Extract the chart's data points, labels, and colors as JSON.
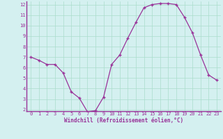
{
  "x": [
    0,
    1,
    2,
    3,
    4,
    5,
    6,
    7,
    8,
    9,
    10,
    11,
    12,
    13,
    14,
    15,
    16,
    17,
    18,
    19,
    20,
    21,
    22,
    23
  ],
  "y": [
    7.0,
    6.7,
    6.3,
    6.3,
    5.5,
    3.7,
    3.1,
    1.8,
    1.9,
    3.2,
    6.3,
    7.2,
    8.8,
    10.3,
    11.7,
    12.0,
    12.1,
    12.1,
    12.0,
    10.8,
    9.3,
    7.2,
    5.3,
    4.8
  ],
  "xlabel": "Windchill (Refroidissement éolien,°C)",
  "ylim": [
    2,
    12
  ],
  "xlim": [
    0,
    23
  ],
  "line_color": "#993399",
  "marker_color": "#993399",
  "bg_color": "#d4f0f0",
  "grid_color": "#aaddcc",
  "axis_label_color": "#993399",
  "tick_color": "#993399",
  "spine_color": "#993399",
  "yticks": [
    2,
    3,
    4,
    5,
    6,
    7,
    8,
    9,
    10,
    11,
    12
  ],
  "xticks": [
    0,
    1,
    2,
    3,
    4,
    5,
    6,
    7,
    8,
    9,
    10,
    11,
    12,
    13,
    14,
    15,
    16,
    17,
    18,
    19,
    20,
    21,
    22,
    23
  ],
  "tick_fontsize": 5.0,
  "xlabel_fontsize": 5.5
}
